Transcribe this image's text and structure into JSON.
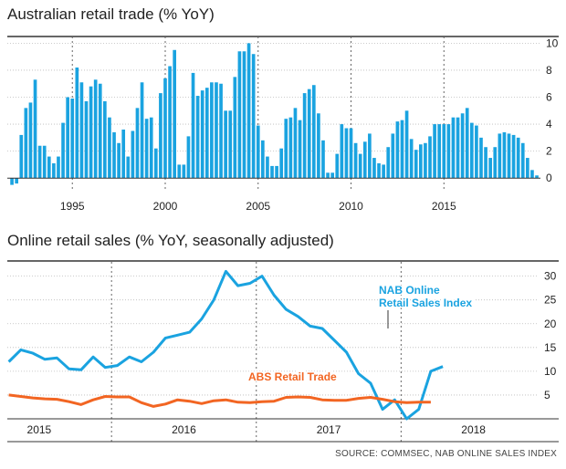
{
  "chart_data": [
    {
      "type": "bar",
      "title": "Australian retail trade (% YoY)",
      "x_start": 1991.75,
      "x_step": 0.25,
      "values": [
        -0.5,
        -0.4,
        3.2,
        5.2,
        5.6,
        7.3,
        2.4,
        2.4,
        1.6,
        1.1,
        1.6,
        4.1,
        6.0,
        5.9,
        8.2,
        7.1,
        5.7,
        6.8,
        7.3,
        7.0,
        5.7,
        4.5,
        3.4,
        2.6,
        3.6,
        1.6,
        3.5,
        5.2,
        7.1,
        4.4,
        4.5,
        2.2,
        6.3,
        7.4,
        8.3,
        9.5,
        1.0,
        1.0,
        3.1,
        7.8,
        6.1,
        6.5,
        6.7,
        7.1,
        7.1,
        7.0,
        5.0,
        5.0,
        7.5,
        9.4,
        9.4,
        10.0,
        9.2,
        3.9,
        2.8,
        1.6,
        0.9,
        0.9,
        2.2,
        4.4,
        4.5,
        5.2,
        4.3,
        6.3,
        6.6,
        6.9,
        4.8,
        2.8,
        0.4,
        0.4,
        1.8,
        4.0,
        3.7,
        3.7,
        2.6,
        1.8,
        2.7,
        3.3,
        1.5,
        1.1,
        1.0,
        2.3,
        3.3,
        4.2,
        4.3,
        5.0,
        2.9,
        2.1,
        2.5,
        2.6,
        3.1,
        4.0,
        4.0,
        4.0,
        4.0,
        4.5,
        4.5,
        4.8,
        5.2,
        4.1,
        3.9,
        3.0,
        2.3,
        1.5,
        2.3,
        3.3,
        3.4,
        3.3,
        3.2,
        3.0,
        2.6,
        1.5,
        0.6,
        0.2
      ],
      "ylim": [
        -1,
        10.5
      ],
      "yticks": [
        0,
        2,
        4,
        6,
        8,
        10
      ],
      "xticks": [
        1995,
        2000,
        2005,
        2010,
        2015
      ],
      "color": "#1aa3e0"
    },
    {
      "type": "line",
      "title": "Online retail sales (% YoY, seasonally adjusted)",
      "x_start": 2014.79,
      "x_step": 0.0833,
      "series": [
        {
          "name": "NAB Online Retail Sales Index",
          "color": "#1aa3e0",
          "values": [
            12,
            14.5,
            13.8,
            12.5,
            12.8,
            10.5,
            10.3,
            13,
            10.8,
            11.2,
            13,
            12,
            14,
            17,
            17.6,
            18.2,
            21,
            25,
            31,
            28,
            28.5,
            30,
            26,
            23,
            21.5,
            19.5,
            19,
            16.5,
            14,
            9.5,
            7.5,
            2,
            4,
            0,
            2,
            10,
            11
          ]
        },
        {
          "name": "ABS Retail Trade",
          "color": "#f26522",
          "values": [
            5,
            4.7,
            4.4,
            4.2,
            4.1,
            3.6,
            3.0,
            4.0,
            4.7,
            4.6,
            4.6,
            3.4,
            2.6,
            3.1,
            4.0,
            3.7,
            3.2,
            3.8,
            4.0,
            3.5,
            3.4,
            3.6,
            3.7,
            4.5,
            4.6,
            4.5,
            4.0,
            3.9,
            3.9,
            4.3,
            4.5,
            4.1,
            3.6,
            3.4,
            3.5,
            3.5
          ]
        }
      ],
      "ylim": [
        0,
        33
      ],
      "yticks": [
        5,
        10,
        15,
        20,
        25,
        30
      ],
      "xticks": [
        "2015",
        "2016",
        "2017",
        "2018"
      ],
      "annotations": {
        "nab_line1": "NAB Online",
        "nab_line2": "Retail Sales Index",
        "abs": "ABS Retail Trade"
      }
    }
  ],
  "source": "SOURCE: COMMSEC, NAB ONLINE SALES INDEX"
}
